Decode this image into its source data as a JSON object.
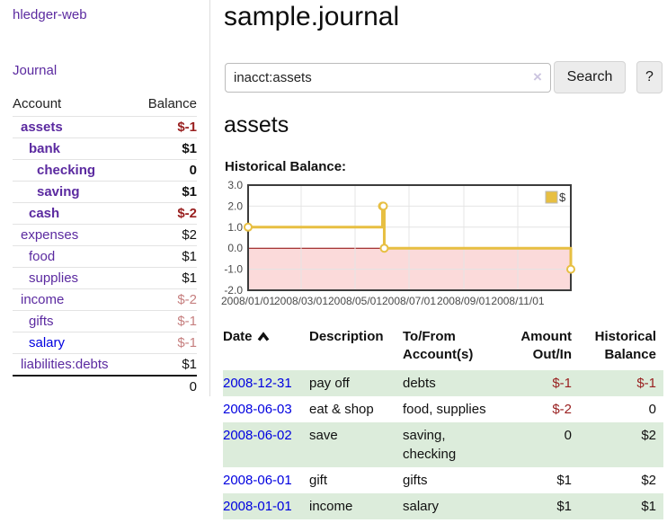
{
  "app": {
    "title": "hledger-web"
  },
  "nav": {
    "journal_label": "Journal"
  },
  "sidebar": {
    "header": {
      "account": "Account",
      "balance": "Balance"
    },
    "accounts": [
      {
        "name": "assets",
        "balance": "$-1"
      },
      {
        "name": "bank",
        "balance": "$1"
      },
      {
        "name": "checking",
        "balance": "0"
      },
      {
        "name": "saving",
        "balance": "$1"
      },
      {
        "name": "cash",
        "balance": "$-2"
      },
      {
        "name": "expenses",
        "balance": "$2"
      },
      {
        "name": "food",
        "balance": "$1"
      },
      {
        "name": "supplies",
        "balance": "$1"
      },
      {
        "name": "income",
        "balance": "$-2"
      },
      {
        "name": "gifts",
        "balance": "$-1"
      },
      {
        "name": "salary",
        "balance": "$-1"
      },
      {
        "name": "liabilities:debts",
        "balance": "$1"
      }
    ],
    "total": "0"
  },
  "main": {
    "title": "sample.journal",
    "search": {
      "query": "inacct:assets",
      "clear_icon": "×",
      "button_label": "Search",
      "help_label": "?"
    },
    "account_heading": "assets",
    "chart_label": "Historical Balance:"
  },
  "chart_data": {
    "type": "line",
    "title": "Historical Balance",
    "step": true,
    "series": [
      {
        "name": "$",
        "points": [
          [
            "2008-01-01",
            1
          ],
          [
            "2008-06-01",
            2
          ],
          [
            "2008-06-02",
            2
          ],
          [
            "2008-06-03",
            0
          ],
          [
            "2008-12-31",
            -1
          ]
        ]
      }
    ],
    "x_range": [
      "2008-01-01",
      "2008-12-31"
    ],
    "x_ticks": [
      "2008/01/01",
      "2008/03/01",
      "2008/05/01",
      "2008/07/01",
      "2008/09/01",
      "2008/11/01"
    ],
    "y_ticks": [
      3.0,
      2.0,
      1.0,
      0.0,
      -1.0,
      -2.0
    ],
    "ylim": [
      -2,
      3
    ],
    "grid": true,
    "legend": {
      "label": "$",
      "position": "top-right"
    },
    "colors": {
      "line": "#e7bf42",
      "negative_fill": "#fbdada",
      "zero_line": "#8b0000",
      "grid": "#e4e4e4",
      "border": "#3c3c3c"
    }
  },
  "register": {
    "columns": [
      "Date",
      "Description",
      "To/From Account(s)",
      "Amount Out/In",
      "Historical Balance"
    ],
    "rows": [
      {
        "date": "2008-12-31",
        "description": "pay off",
        "accounts": "debts",
        "amount": "$-1",
        "balance": "$-1"
      },
      {
        "date": "2008-06-03",
        "description": "eat & shop",
        "accounts": "food, supplies",
        "amount": "$-2",
        "balance": "0"
      },
      {
        "date": "2008-06-02",
        "description": "save",
        "accounts": "saving, checking",
        "amount": "0",
        "balance": "$2"
      },
      {
        "date": "2008-06-01",
        "description": "gift",
        "accounts": "gifts",
        "amount": "$1",
        "balance": "$2"
      },
      {
        "date": "2008-01-01",
        "description": "income",
        "accounts": "salary",
        "amount": "$1",
        "balance": "$1"
      }
    ]
  }
}
